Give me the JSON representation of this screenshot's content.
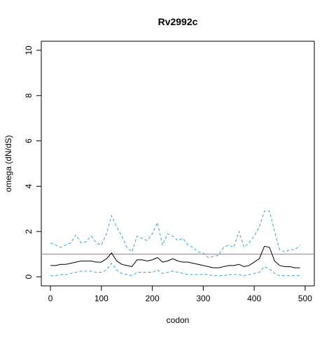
{
  "chart_data": {
    "type": "line",
    "title": "Rv2992c",
    "xlabel": "codon",
    "ylabel": "omega (dN/dS)",
    "x": [
      0,
      10,
      20,
      30,
      40,
      50,
      60,
      70,
      80,
      90,
      100,
      110,
      120,
      130,
      140,
      150,
      160,
      170,
      180,
      190,
      200,
      210,
      220,
      230,
      240,
      250,
      260,
      270,
      280,
      290,
      300,
      310,
      320,
      330,
      340,
      350,
      360,
      370,
      380,
      390,
      400,
      410,
      420,
      430,
      440,
      450,
      460,
      470,
      480,
      490
    ],
    "series": [
      {
        "color": "#3aa3dc",
        "dash": true,
        "values": [
          1.5,
          1.4,
          1.3,
          1.4,
          1.5,
          1.85,
          1.5,
          1.55,
          1.8,
          1.5,
          1.4,
          1.9,
          2.7,
          2.2,
          1.8,
          1.3,
          1.1,
          1.8,
          1.7,
          1.6,
          1.9,
          2.4,
          1.4,
          1.9,
          1.8,
          1.6,
          1.7,
          1.4,
          1.3,
          1.1,
          1.05,
          0.85,
          0.9,
          0.95,
          1.3,
          1.4,
          1.3,
          2.0,
          1.3,
          1.5,
          1.8,
          2.2,
          2.9,
          2.9,
          2.0,
          1.2,
          1.1,
          1.2,
          1.2,
          1.4
        ]
      },
      {
        "color": "#000000",
        "dash": false,
        "values": [
          0.5,
          0.5,
          0.55,
          0.55,
          0.6,
          0.65,
          0.7,
          0.7,
          0.7,
          0.65,
          0.65,
          0.8,
          1.05,
          0.7,
          0.55,
          0.5,
          0.45,
          0.75,
          0.75,
          0.7,
          0.75,
          0.85,
          0.65,
          0.7,
          0.8,
          0.7,
          0.65,
          0.65,
          0.6,
          0.55,
          0.5,
          0.45,
          0.4,
          0.4,
          0.45,
          0.5,
          0.5,
          0.55,
          0.45,
          0.5,
          0.65,
          0.8,
          1.35,
          1.3,
          0.7,
          0.5,
          0.45,
          0.45,
          0.4,
          0.4
        ]
      },
      {
        "color": "#3aa3dc",
        "dash": true,
        "values": [
          0.05,
          0.05,
          0.1,
          0.1,
          0.15,
          0.2,
          0.25,
          0.25,
          0.25,
          0.2,
          0.2,
          0.3,
          0.6,
          0.3,
          0.15,
          0.1,
          0.05,
          0.2,
          0.2,
          0.2,
          0.2,
          0.3,
          0.15,
          0.2,
          0.25,
          0.2,
          0.15,
          0.1,
          0.1,
          0.1,
          0.1,
          0.1,
          0.05,
          0.05,
          0.05,
          0.1,
          0.1,
          0.1,
          0.05,
          0.1,
          0.15,
          0.2,
          0.45,
          0.35,
          0.15,
          0.05,
          0.05,
          0.05,
          0.05,
          0.05
        ]
      }
    ],
    "hline": {
      "value": 1,
      "color": "#d0589e"
    },
    "xlim": [
      -18,
      518
    ],
    "ylim": [
      -0.4,
      10.4
    ],
    "xticks": [
      0,
      100,
      200,
      300,
      400,
      500
    ],
    "yticks": [
      0,
      2,
      4,
      6,
      8,
      10
    ],
    "grid": false
  }
}
